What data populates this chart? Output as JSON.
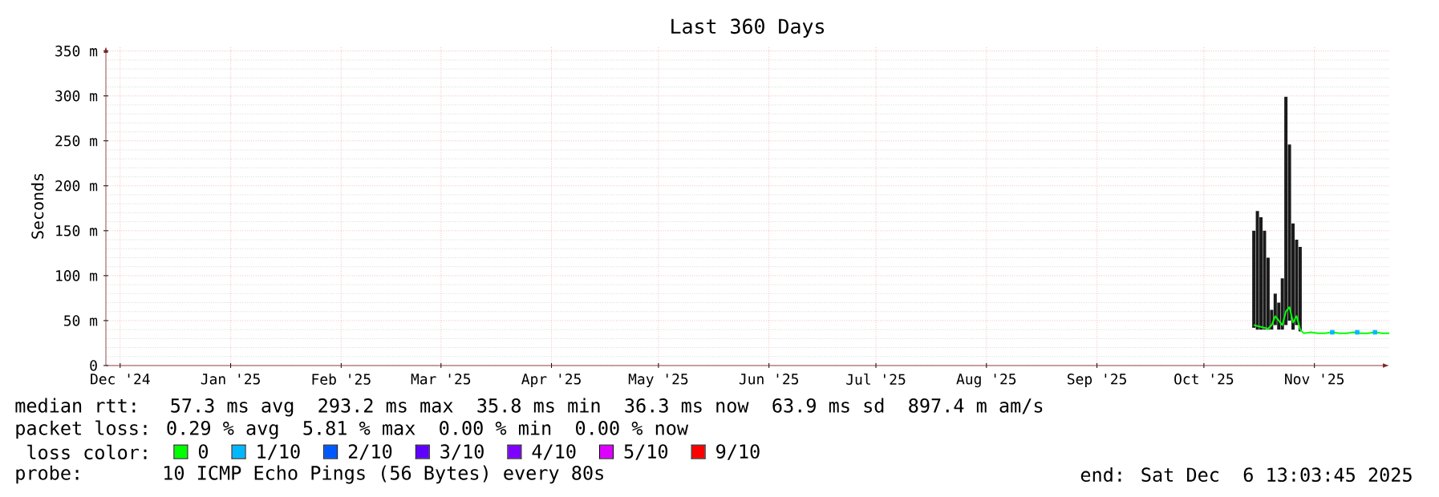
{
  "chart_data": {
    "type": "line",
    "title": "Last 360 Days",
    "ylabel": "Seconds",
    "legend_title": "loss color:",
    "xlim": [
      "2024-12-11",
      "2025-12-06"
    ],
    "xticks": [
      {
        "value": "2024-12-15",
        "label": "Dec '24"
      },
      {
        "value": "2025-01-15",
        "label": "Jan '25"
      },
      {
        "value": "2025-02-15",
        "label": "Feb '25"
      },
      {
        "value": "2025-03-15",
        "label": "Mar '25"
      },
      {
        "value": "2025-04-15",
        "label": "Apr '25"
      },
      {
        "value": "2025-05-15",
        "label": "May '25"
      },
      {
        "value": "2025-06-15",
        "label": "Jun '25"
      },
      {
        "value": "2025-07-15",
        "label": "Jul '25"
      },
      {
        "value": "2025-08-15",
        "label": "Aug '25"
      },
      {
        "value": "2025-09-15",
        "label": "Sep '25"
      },
      {
        "value": "2025-10-15",
        "label": "Oct '25"
      },
      {
        "value": "2025-11-15",
        "label": "Nov '25"
      }
    ],
    "ylim": [
      0,
      355
    ],
    "yticks": [
      0,
      {
        "value": 50,
        "label": "50 m"
      },
      {
        "value": 100,
        "label": "100 m"
      },
      {
        "value": 150,
        "label": "150 m"
      },
      {
        "value": 200,
        "label": "200 m"
      },
      {
        "value": 250,
        "label": "250 m"
      },
      {
        "value": 300,
        "label": "300 m"
      },
      {
        "value": 350,
        "label": "350 m"
      }
    ],
    "grid": true,
    "legend": "bottom",
    "series": [
      {
        "type": "bar",
        "color": "#1a1a1a",
        "x": [
          "2025-10-29",
          "2025-10-30",
          "2025-10-31",
          "2025-11-01",
          "2025-11-02",
          "2025-11-03",
          "2025-11-04",
          "2025-11-05",
          "2025-11-06",
          "2025-11-07",
          "2025-11-08",
          "2025-11-09",
          "2025-11-10",
          "2025-11-11"
        ],
        "base": [
          42,
          40,
          40,
          40,
          40,
          40,
          45,
          40,
          40,
          45,
          50,
          40,
          45,
          38
        ],
        "values": [
          108,
          132,
          125,
          110,
          80,
          22,
          35,
          30,
          57,
          254,
          196,
          118,
          95,
          94
        ]
      },
      {
        "name": "0",
        "color": "#00ff00",
        "x": [
          "2025-10-29",
          "2025-10-30",
          "2025-10-31",
          "2025-11-01",
          "2025-11-02",
          "2025-11-03",
          "2025-11-04",
          "2025-11-05",
          "2025-11-06",
          "2025-11-07",
          "2025-11-08",
          "2025-11-09",
          "2025-11-10",
          "2025-11-11",
          "2025-11-12",
          "2025-11-14",
          "2025-11-16",
          "2025-11-18",
          "2025-11-20",
          "2025-11-22",
          "2025-11-24",
          "2025-11-26",
          "2025-11-28",
          "2025-11-30",
          "2025-12-02",
          "2025-12-04",
          "2025-12-06"
        ],
        "values": [
          45,
          44,
          43,
          42,
          41,
          45,
          55,
          50,
          45,
          60,
          65,
          48,
          55,
          40,
          36,
          37,
          36,
          36,
          37,
          36,
          36,
          37,
          36,
          36,
          37,
          36,
          36
        ]
      },
      {
        "name": "1/10",
        "type": "scatter",
        "marker": "square",
        "color": "#00b8ff",
        "x": [
          "2025-11-20",
          "2025-11-27",
          "2025-12-02"
        ],
        "values": [
          37,
          37,
          37
        ]
      },
      {
        "name": "2/10",
        "color": "#0059ff"
      },
      {
        "name": "3/10",
        "color": "#5e00ff"
      },
      {
        "name": "4/10",
        "color": "#7e00ff"
      },
      {
        "name": "5/10",
        "color": "#dd00ff"
      },
      {
        "name": "9/10",
        "color": "#ff0000"
      }
    ],
    "annotations": [
      "median rtt:  57.3 ms avg  293.2 ms max  35.8 ms min  36.3 ms now  63.9 ms sd  897.4 m am/s",
      "packet loss: 0.29 % avg  5.81 % max  0.00 % min  0.00 % now",
      "probe:",
      "10 ICMP Echo Pings (56 Bytes) every 80s",
      "end: Sat Dec  6 13:03:45 2025"
    ]
  }
}
